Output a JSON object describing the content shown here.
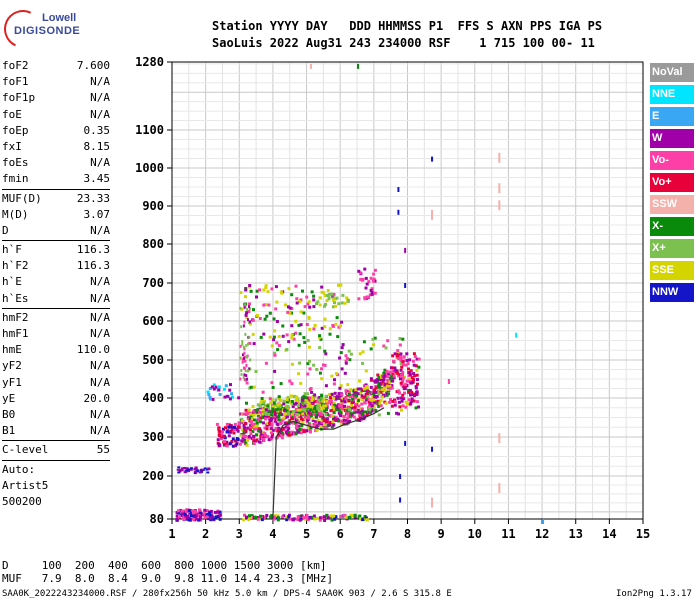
{
  "logo": {
    "line1": "Lowell",
    "line2": "DIGISONDE"
  },
  "header": {
    "row1": "Station YYYY DAY   DDD HHMMSS P1  FFS S AXN PPS IGA PS",
    "row2": "SaoLuis 2022 Aug31 243 234000 RSF    1 715 100 00- 11"
  },
  "params": [
    [
      [
        "foF2",
        "7.600"
      ],
      [
        "foF1",
        "N/A"
      ],
      [
        "foF1p",
        "N/A"
      ],
      [
        "foE",
        "N/A"
      ],
      [
        "foEp",
        "0.35"
      ],
      [
        "fxI",
        "8.15"
      ],
      [
        "foEs",
        "N/A"
      ],
      [
        "fmin",
        "3.45"
      ]
    ],
    [
      [
        "MUF(D)",
        "23.33"
      ],
      [
        "M(D)",
        "3.07"
      ],
      [
        "D",
        "N/A"
      ]
    ],
    [
      [
        "h`F",
        "116.3"
      ],
      [
        "h`F2",
        "116.3"
      ],
      [
        "h`E",
        "N/A"
      ],
      [
        "h`Es",
        "N/A"
      ]
    ],
    [
      [
        "hmF2",
        "N/A"
      ],
      [
        "hmF1",
        "N/A"
      ],
      [
        "hmE",
        "110.0"
      ],
      [
        "yF2",
        "N/A"
      ],
      [
        "yF1",
        "N/A"
      ],
      [
        "yE",
        "20.0"
      ],
      [
        "B0",
        "N/A"
      ],
      [
        "B1",
        "N/A"
      ]
    ],
    [
      [
        "C-level",
        "55"
      ]
    ]
  ],
  "auto": [
    "Auto:",
    "Artist5",
    "500200"
  ],
  "legend": [
    {
      "label": "NoVal",
      "color": "#9a9a9a"
    },
    {
      "label": "NNE",
      "color": "#00e5ff"
    },
    {
      "label": "E",
      "color": "#3aa7f5"
    },
    {
      "label": "W",
      "color": "#a000a8"
    },
    {
      "label": "Vo-",
      "color": "#ff3fa8"
    },
    {
      "label": "Vo+",
      "color": "#e8003a"
    },
    {
      "label": "SSW",
      "color": "#f4b0aa"
    },
    {
      "label": "X-",
      "color": "#0a8a0a"
    },
    {
      "label": "X+",
      "color": "#7cc050"
    },
    {
      "label": "SSE",
      "color": "#d4d400"
    },
    {
      "label": "NNW",
      "color": "#1414c8"
    }
  ],
  "chart_data": {
    "type": "scatter",
    "x_ticks": [
      "1",
      "2",
      "3",
      "4",
      "5",
      "6",
      "7",
      "8",
      "9",
      "10",
      "11",
      "12",
      "13",
      "14",
      "15"
    ],
    "y_ticks": [
      "80",
      "200",
      "300",
      "400",
      "500",
      "600",
      "700",
      "800",
      "900",
      "1000",
      "1100",
      "1280"
    ],
    "xlim": [
      1,
      15
    ],
    "grid": true,
    "trace": [
      [
        4.0,
        80
      ],
      [
        4.1,
        300
      ],
      [
        4.3,
        330
      ],
      [
        4.6,
        340
      ],
      [
        5.0,
        330
      ],
      [
        5.4,
        320
      ],
      [
        5.8,
        320
      ],
      [
        6.2,
        335
      ],
      [
        6.6,
        345
      ],
      [
        7.0,
        360
      ],
      [
        7.3,
        375
      ]
    ]
  },
  "footer": {
    "row1": "D     100  200  400  600  800 1000 1500 3000 [km]",
    "row2": "MUF   7.9  8.0  8.4  9.0  9.8 11.0 14.4 23.3 [MHz]",
    "file": "SAA0K_2022243234000.RSF / 280fx256h 50 kHz 5.0 km / DPS-4 SAA0K 903 / 2.6 S 315.8 E",
    "version": "Ion2Png 1.3.17"
  }
}
